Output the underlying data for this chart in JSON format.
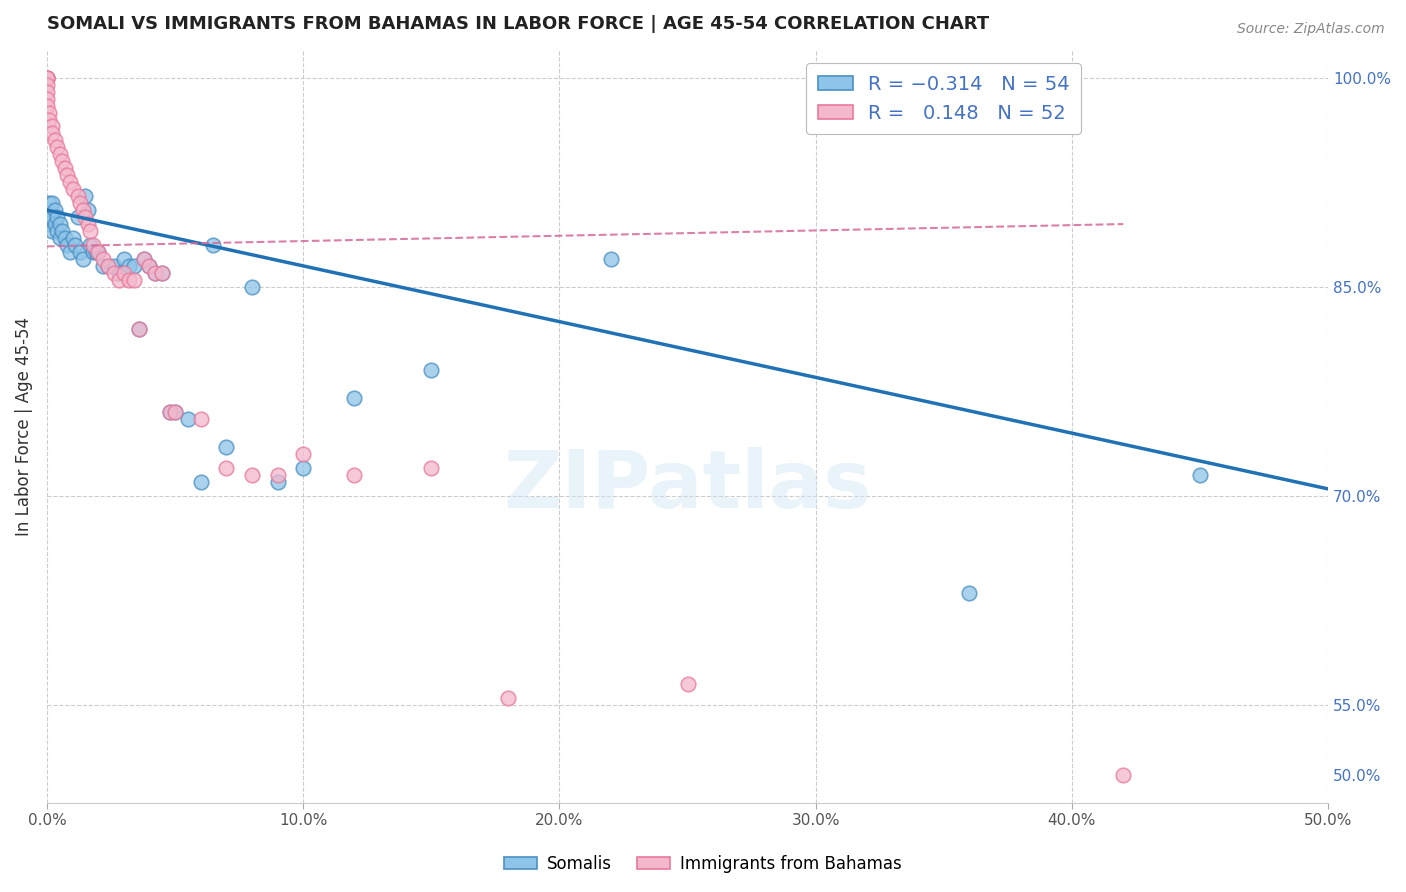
{
  "title": "SOMALI VS IMMIGRANTS FROM BAHAMAS IN LABOR FORCE | AGE 45-54 CORRELATION CHART",
  "source": "Source: ZipAtlas.com",
  "ylabel": "In Labor Force | Age 45-54",
  "xlim": [
    0.0,
    0.5
  ],
  "ylim": [
    0.48,
    1.02
  ],
  "xticks": [
    0.0,
    0.1,
    0.2,
    0.3,
    0.4,
    0.5
  ],
  "xtick_labels": [
    "0.0%",
    "10.0%",
    "20.0%",
    "30.0%",
    "40.0%",
    "50.0%"
  ],
  "yticks_right": [
    0.5,
    0.55,
    0.7,
    0.85,
    1.0
  ],
  "ytick_labels_right": [
    "50.0%",
    "55.0%",
    "70.0%",
    "85.0%",
    "100.0%"
  ],
  "grid_yticks": [
    0.55,
    0.7,
    0.85,
    1.0
  ],
  "grid_color": "#cccccc",
  "watermark": "ZIPatlas",
  "legend_label1": "Somalis",
  "legend_label2": "Immigrants from Bahamas",
  "blue_color": "#8ec4e8",
  "pink_color": "#f4b8cc",
  "blue_edge_color": "#4a90c4",
  "pink_edge_color": "#e8799a",
  "blue_line_color": "#2171b5",
  "pink_line_color": "#d4699a",
  "somali_x": [
    0.0,
    0.0,
    0.001,
    0.001,
    0.002,
    0.002,
    0.002,
    0.003,
    0.003,
    0.004,
    0.004,
    0.005,
    0.005,
    0.006,
    0.007,
    0.008,
    0.009,
    0.01,
    0.011,
    0.012,
    0.013,
    0.014,
    0.015,
    0.016,
    0.017,
    0.018,
    0.019,
    0.02,
    0.022,
    0.024,
    0.026,
    0.028,
    0.03,
    0.032,
    0.034,
    0.036,
    0.038,
    0.04,
    0.042,
    0.045,
    0.048,
    0.05,
    0.055,
    0.06,
    0.065,
    0.07,
    0.08,
    0.09,
    0.1,
    0.12,
    0.15,
    0.22,
    0.36,
    0.45
  ],
  "somali_y": [
    0.905,
    0.895,
    0.91,
    0.9,
    0.91,
    0.9,
    0.89,
    0.905,
    0.895,
    0.9,
    0.89,
    0.895,
    0.885,
    0.89,
    0.885,
    0.88,
    0.875,
    0.885,
    0.88,
    0.9,
    0.875,
    0.87,
    0.915,
    0.905,
    0.88,
    0.875,
    0.875,
    0.875,
    0.865,
    0.865,
    0.865,
    0.86,
    0.87,
    0.865,
    0.865,
    0.82,
    0.87,
    0.865,
    0.86,
    0.86,
    0.76,
    0.76,
    0.755,
    0.71,
    0.88,
    0.735,
    0.85,
    0.71,
    0.72,
    0.77,
    0.79,
    0.87,
    0.63,
    0.715
  ],
  "bahamas_x": [
    0.0,
    0.0,
    0.0,
    0.0,
    0.0,
    0.0,
    0.0,
    0.0,
    0.001,
    0.001,
    0.002,
    0.002,
    0.003,
    0.004,
    0.005,
    0.006,
    0.007,
    0.008,
    0.009,
    0.01,
    0.012,
    0.013,
    0.014,
    0.015,
    0.016,
    0.017,
    0.018,
    0.02,
    0.022,
    0.024,
    0.026,
    0.028,
    0.03,
    0.032,
    0.034,
    0.036,
    0.038,
    0.04,
    0.042,
    0.045,
    0.048,
    0.05,
    0.06,
    0.07,
    0.08,
    0.09,
    0.1,
    0.12,
    0.15,
    0.18,
    0.25,
    0.42
  ],
  "bahamas_y": [
    1.0,
    1.0,
    1.0,
    1.0,
    0.995,
    0.99,
    0.985,
    0.98,
    0.975,
    0.97,
    0.965,
    0.96,
    0.955,
    0.95,
    0.945,
    0.94,
    0.935,
    0.93,
    0.925,
    0.92,
    0.915,
    0.91,
    0.905,
    0.9,
    0.895,
    0.89,
    0.88,
    0.875,
    0.87,
    0.865,
    0.86,
    0.855,
    0.86,
    0.855,
    0.855,
    0.82,
    0.87,
    0.865,
    0.86,
    0.86,
    0.76,
    0.76,
    0.755,
    0.72,
    0.715,
    0.715,
    0.73,
    0.715,
    0.72,
    0.555,
    0.565,
    0.5
  ],
  "blue_trendline_x": [
    0.0,
    0.5
  ],
  "blue_trendline_y": [
    0.905,
    0.705
  ],
  "pink_trendline_x": [
    0.0,
    0.42
  ],
  "pink_trendline_y": [
    0.879,
    0.895
  ]
}
